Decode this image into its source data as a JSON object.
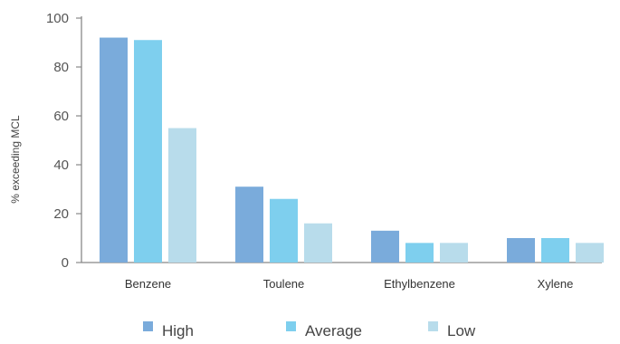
{
  "chart_data": {
    "type": "bar",
    "title": "",
    "xlabel": "",
    "ylabel": "% exceeding MCL",
    "ylim": [
      0,
      100
    ],
    "yticks": [
      0,
      20,
      40,
      60,
      80,
      100
    ],
    "categories": [
      "Benzene",
      "Toulene",
      "Ethylbenzene",
      "Xylene"
    ],
    "series": [
      {
        "name": "High",
        "color": "#7aabdb",
        "values": [
          92,
          31,
          13,
          10
        ]
      },
      {
        "name": "Average",
        "color": "#7ecfee",
        "values": [
          91,
          26,
          8,
          10
        ]
      },
      {
        "name": "Low",
        "color": "#b8dceb",
        "values": [
          55,
          16,
          8,
          8
        ]
      }
    ],
    "grid": false,
    "legend_position": "bottom"
  }
}
